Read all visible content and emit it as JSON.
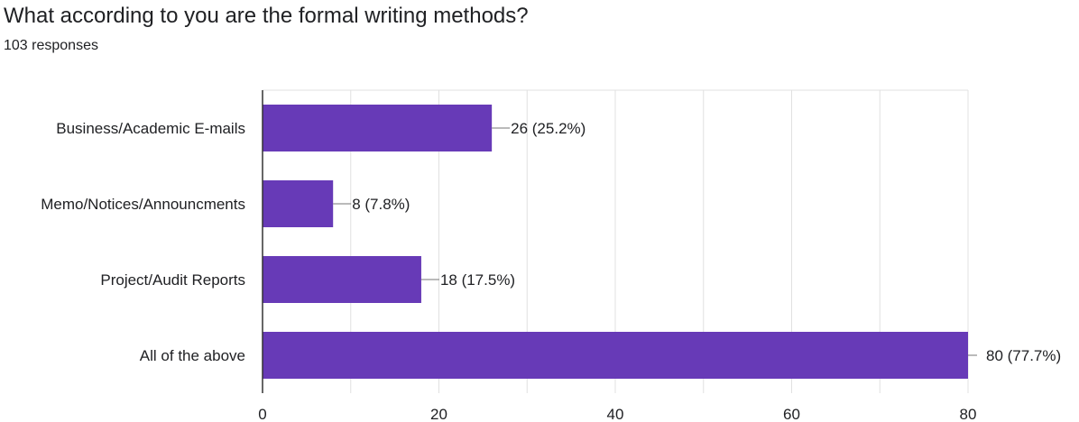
{
  "question": {
    "title": "What according to you are the formal writing methods?",
    "responses": "103 responses"
  },
  "colors": {
    "bar": "#673ab7",
    "grid": "#e0e0e0",
    "axis": "#333333",
    "leader": "#757575"
  },
  "chart_data": {
    "type": "bar",
    "orientation": "horizontal",
    "categories": [
      "Business/Academic E-mails",
      "Memo/Notices/Announcments",
      "Project/Audit Reports",
      "All of the above"
    ],
    "values": [
      26,
      8,
      18,
      80
    ],
    "value_labels": [
      "26 (25.2%)",
      "8 (7.8%)",
      "18 (17.5%)",
      "80 (77.7%)"
    ],
    "xlim": [
      0,
      80
    ],
    "xticks": [
      0,
      20,
      40,
      60,
      80
    ],
    "grid": true,
    "legend": "none"
  }
}
